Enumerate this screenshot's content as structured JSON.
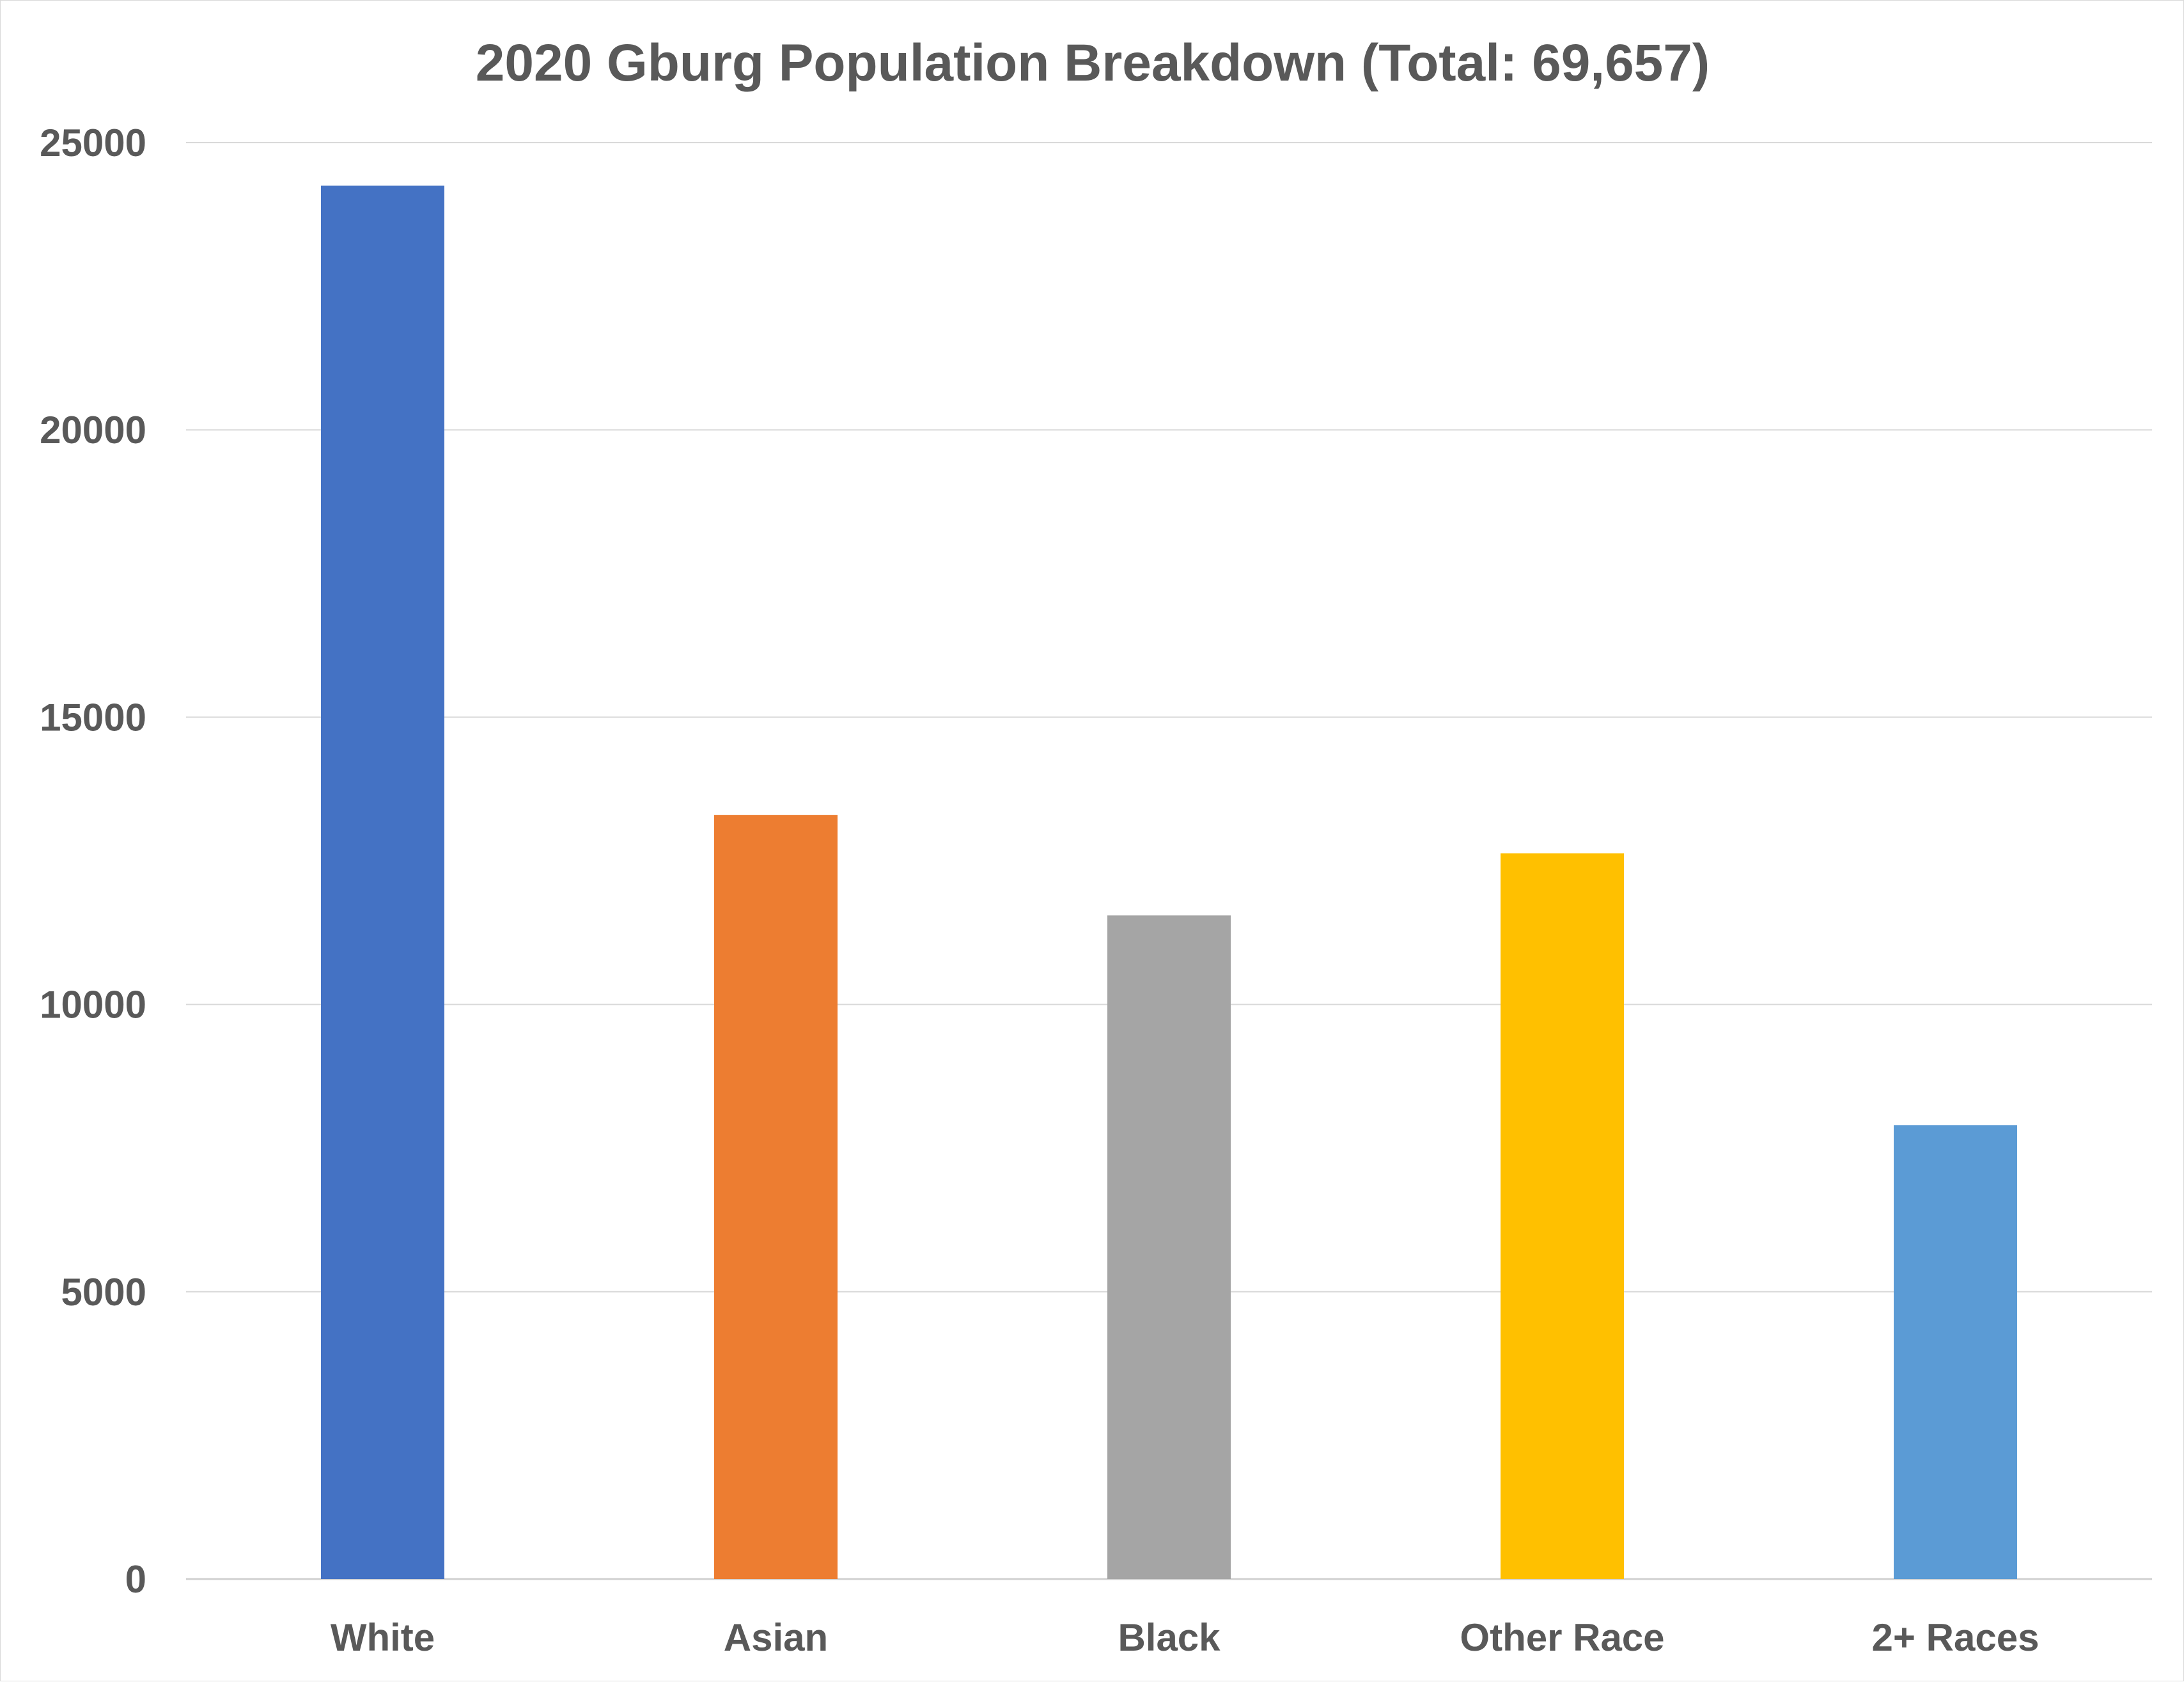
{
  "chart_data": {
    "type": "bar",
    "title": "2020 Gburg Population Breakdown (Total: 69,657)",
    "xlabel": "",
    "ylabel": "",
    "categories": [
      "White",
      "Asian",
      "Black",
      "Other Race",
      "2+ Races"
    ],
    "values": [
      24250,
      13300,
      11550,
      12630,
      7900
    ],
    "colors": [
      "#4472C4",
      "#ED7D31",
      "#A5A5A5",
      "#FFC000",
      "#5B9BD5"
    ],
    "ylim": [
      0,
      25000
    ],
    "yticks": [
      "0",
      "5000",
      "10000",
      "15000",
      "20000",
      "25000"
    ],
    "grid": true,
    "legend": "none"
  }
}
